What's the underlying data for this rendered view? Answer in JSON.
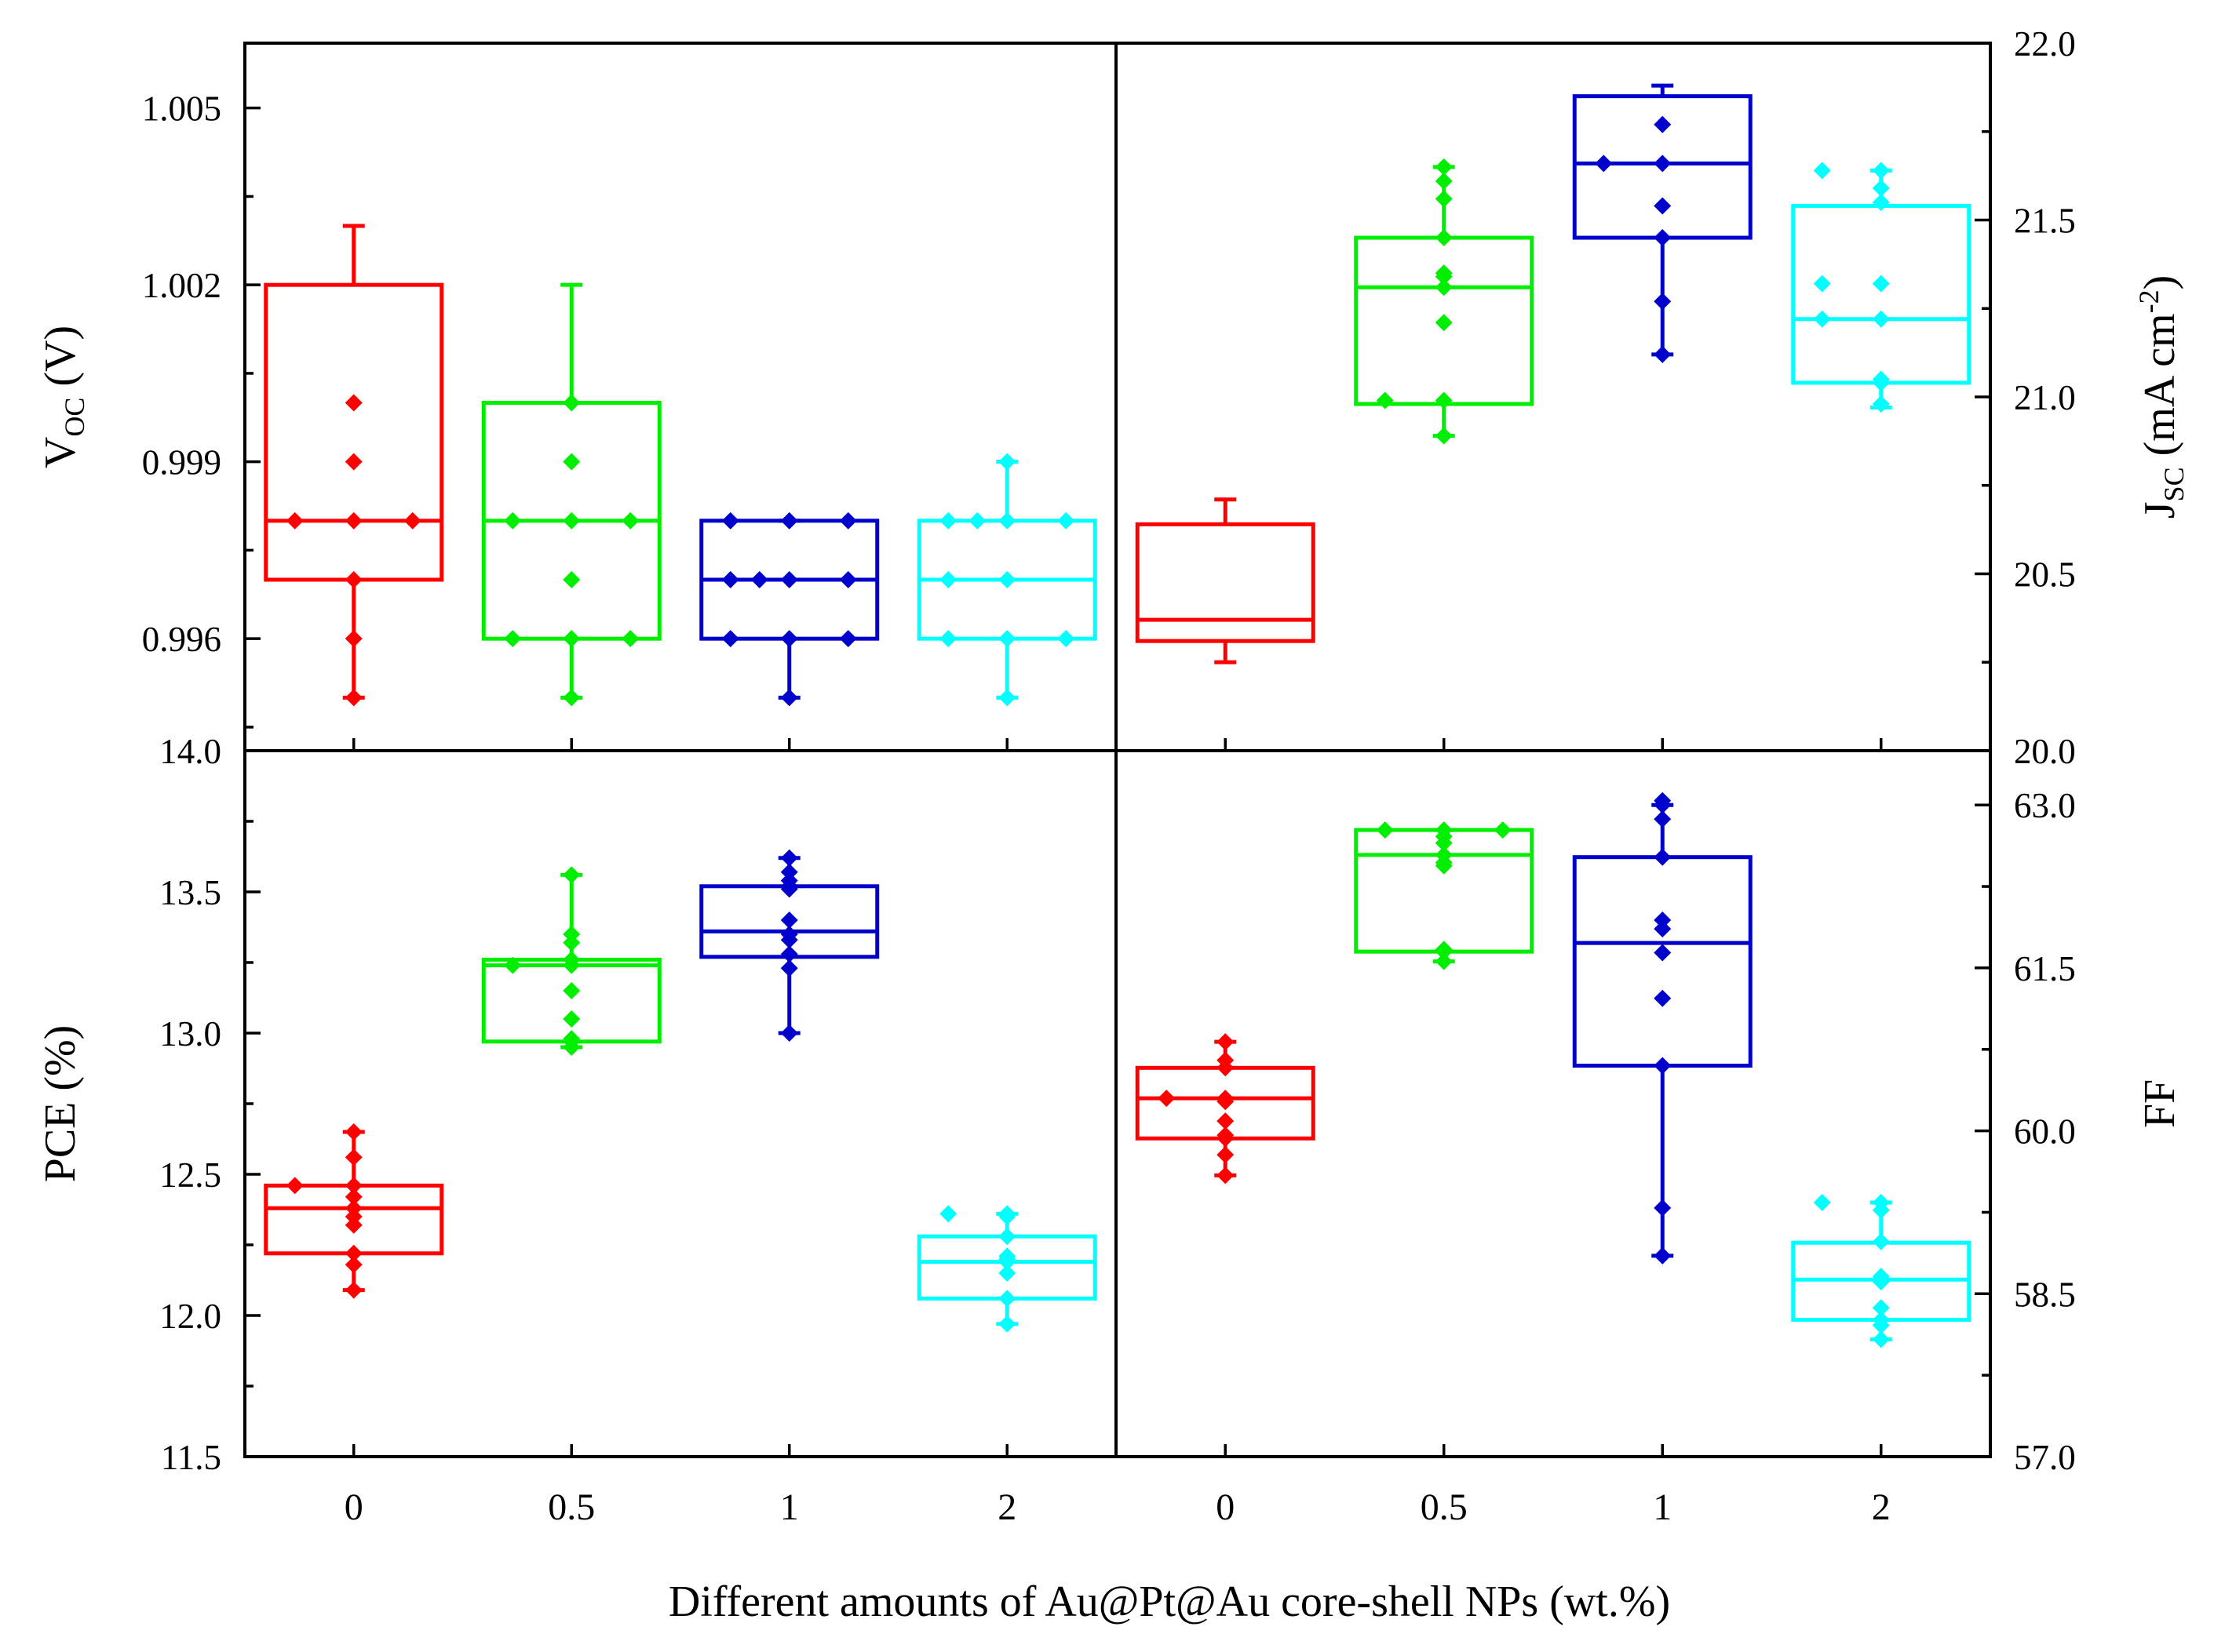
{
  "colors": {
    "0": "#ff0000",
    "0.5": "#00ee00",
    "1": "#0000cc",
    "2": "#00ffff",
    "axis": "#000000"
  },
  "xlabel": "Different amounts of Au@Pt@Au core-shell NPs (wt.%)",
  "chart_data": [
    {
      "panel": "top-left",
      "type": "box",
      "categories": [
        "0",
        "0.5",
        "1",
        "2"
      ],
      "ylabel": {
        "main": "V",
        "sub": "OC",
        "rest": " (V)"
      },
      "y_side": "left",
      "ylim": [
        0.9941,
        1.0061
      ],
      "ticks": [
        0.996,
        0.999,
        1.002,
        1.005
      ],
      "tick_labels": [
        "0.996",
        "0.999",
        "1.002",
        "1.005"
      ],
      "boxes": [
        {
          "category": "0",
          "q1": 0.997,
          "median": 0.998,
          "q3": 1.002,
          "whisker_low": 0.995,
          "whisker_high": 1.003
        },
        {
          "category": "0.5",
          "q1": 0.996,
          "median": 0.998,
          "q3": 1.0,
          "whisker_low": 0.995,
          "whisker_high": 1.002
        },
        {
          "category": "1",
          "q1": 0.996,
          "median": 0.997,
          "q3": 0.998,
          "whisker_low": 0.995,
          "whisker_high": 0.998
        },
        {
          "category": "2",
          "q1": 0.996,
          "median": 0.997,
          "q3": 0.998,
          "whisker_low": 0.995,
          "whisker_high": 0.999
        }
      ],
      "points": [
        {
          "category": "0",
          "values": [
            0.995,
            0.996,
            0.997,
            0.998,
            0.998,
            0.998,
            0.999,
            1.0
          ]
        },
        {
          "category": "0.5",
          "values": [
            0.995,
            0.996,
            0.996,
            0.996,
            0.997,
            0.998,
            0.998,
            0.998,
            0.999,
            1.0
          ]
        },
        {
          "category": "1",
          "values": [
            0.995,
            0.996,
            0.996,
            0.996,
            0.997,
            0.997,
            0.997,
            0.997,
            0.998,
            0.998,
            0.998
          ]
        },
        {
          "category": "2",
          "values": [
            0.995,
            0.996,
            0.996,
            0.996,
            0.997,
            0.997,
            0.998,
            0.998,
            0.998,
            0.998,
            0.999
          ]
        }
      ]
    },
    {
      "panel": "top-right",
      "type": "box",
      "categories": [
        "0",
        "0.5",
        "1",
        "2"
      ],
      "ylabel": {
        "main": "J",
        "sub": "SC",
        "rest": " (mA cm",
        "sup": "-2",
        "close": ")"
      },
      "y_side": "right",
      "ylim": [
        20.0,
        22.0
      ],
      "ticks": [
        20.0,
        20.5,
        21.0,
        21.5,
        22.0
      ],
      "tick_labels": [
        "20.0",
        "20.5",
        "21.0",
        "21.5",
        "22.0"
      ],
      "boxes": [
        {
          "category": "0",
          "q1": 20.31,
          "median": 20.37,
          "q3": 20.64,
          "whisker_low": 20.25,
          "whisker_high": 20.71
        },
        {
          "category": "0.5",
          "q1": 20.98,
          "median": 21.31,
          "q3": 21.45,
          "whisker_low": 20.89,
          "whisker_high": 21.65
        },
        {
          "category": "1",
          "q1": 21.45,
          "median": 21.66,
          "q3": 21.85,
          "whisker_low": 21.12,
          "whisker_high": 21.88
        },
        {
          "category": "2",
          "q1": 21.04,
          "median": 21.22,
          "q3": 21.54,
          "whisker_low": 20.97,
          "whisker_high": 21.64
        }
      ],
      "points": [
        {
          "category": "0.5",
          "values": [
            20.89,
            20.99,
            20.99,
            21.21,
            21.31,
            21.34,
            21.35,
            21.45,
            21.56,
            21.61,
            21.65
          ]
        },
        {
          "category": "1",
          "values": [
            21.12,
            21.27,
            21.45,
            21.54,
            21.66,
            21.66,
            21.77
          ]
        },
        {
          "category": "2",
          "values": [
            20.98,
            21.04,
            21.05,
            21.22,
            21.22,
            21.32,
            21.32,
            21.55,
            21.59,
            21.64,
            21.64
          ]
        }
      ]
    },
    {
      "panel": "bottom-left",
      "type": "box",
      "categories": [
        "0",
        "0.5",
        "1",
        "2"
      ],
      "ylabel": {
        "main": "PCE (%)"
      },
      "y_side": "left",
      "ylim": [
        11.5,
        14.0
      ],
      "ticks": [
        11.5,
        12.0,
        12.5,
        13.0,
        13.5,
        14.0
      ],
      "tick_labels": [
        "11.5",
        "12.0",
        "12.5",
        "13.0",
        "13.5",
        "14.0"
      ],
      "boxes": [
        {
          "category": "0",
          "q1": 12.22,
          "median": 12.38,
          "q3": 12.46,
          "whisker_low": 12.09,
          "whisker_high": 12.65
        },
        {
          "category": "0.5",
          "q1": 12.97,
          "median": 13.24,
          "q3": 13.26,
          "whisker_low": 12.95,
          "whisker_high": 13.56
        },
        {
          "category": "1",
          "q1": 13.27,
          "median": 13.36,
          "q3": 13.52,
          "whisker_low": 13.0,
          "whisker_high": 13.62
        },
        {
          "category": "2",
          "q1": 12.06,
          "median": 12.19,
          "q3": 12.28,
          "whisker_low": 11.97,
          "whisker_high": 12.36
        }
      ],
      "points": [
        {
          "category": "0",
          "values": [
            12.09,
            12.18,
            12.22,
            12.32,
            12.35,
            12.38,
            12.42,
            12.46,
            12.46,
            12.56,
            12.65
          ]
        },
        {
          "category": "0.5",
          "values": [
            12.95,
            12.97,
            12.98,
            13.05,
            13.15,
            13.24,
            13.24,
            13.26,
            13.32,
            13.35,
            13.56
          ]
        },
        {
          "category": "1",
          "values": [
            13.0,
            13.23,
            13.28,
            13.33,
            13.35,
            13.4,
            13.51,
            13.52,
            13.54,
            13.57,
            13.62
          ]
        },
        {
          "category": "2",
          "values": [
            11.97,
            12.06,
            12.15,
            12.19,
            12.2,
            12.21,
            12.28,
            12.35,
            12.36,
            12.36
          ]
        }
      ]
    },
    {
      "panel": "bottom-right",
      "type": "box",
      "categories": [
        "0",
        "0.5",
        "1",
        "2"
      ],
      "ylabel": {
        "main": "FF"
      },
      "y_side": "right",
      "ylim": [
        57.0,
        63.5
      ],
      "ticks": [
        57.0,
        58.5,
        60.0,
        61.5,
        63.0
      ],
      "tick_labels": [
        "57.0",
        "58.5",
        "60.0",
        "61.5",
        "63.0"
      ],
      "boxes": [
        {
          "category": "0",
          "q1": 59.93,
          "median": 60.3,
          "q3": 60.58,
          "whisker_low": 59.59,
          "whisker_high": 60.82
        },
        {
          "category": "0.5",
          "q1": 61.65,
          "median": 62.54,
          "q3": 62.77,
          "whisker_low": 61.56,
          "whisker_high": 62.77
        },
        {
          "category": "1",
          "q1": 60.6,
          "median": 61.73,
          "q3": 62.52,
          "whisker_low": 58.85,
          "whisker_high": 63.0
        },
        {
          "category": "2",
          "q1": 58.26,
          "median": 58.63,
          "q3": 58.97,
          "whisker_low": 58.08,
          "whisker_high": 59.34
        }
      ],
      "points": [
        {
          "category": "0",
          "values": [
            59.59,
            59.78,
            59.93,
            59.96,
            60.09,
            60.27,
            60.3,
            60.3,
            60.58,
            60.65,
            60.82
          ]
        },
        {
          "category": "0.5",
          "values": [
            61.56,
            61.65,
            61.67,
            62.44,
            62.47,
            62.54,
            62.65,
            62.71,
            62.77,
            62.77,
            62.77
          ]
        },
        {
          "category": "1",
          "values": [
            58.85,
            59.29,
            60.6,
            61.22,
            61.64,
            61.86,
            61.94,
            62.52,
            62.87,
            63.0,
            63.04
          ]
        },
        {
          "category": "2",
          "values": [
            58.08,
            58.21,
            58.26,
            58.37,
            58.61,
            58.63,
            58.66,
            58.98,
            59.27,
            59.34,
            59.34
          ]
        }
      ]
    }
  ]
}
